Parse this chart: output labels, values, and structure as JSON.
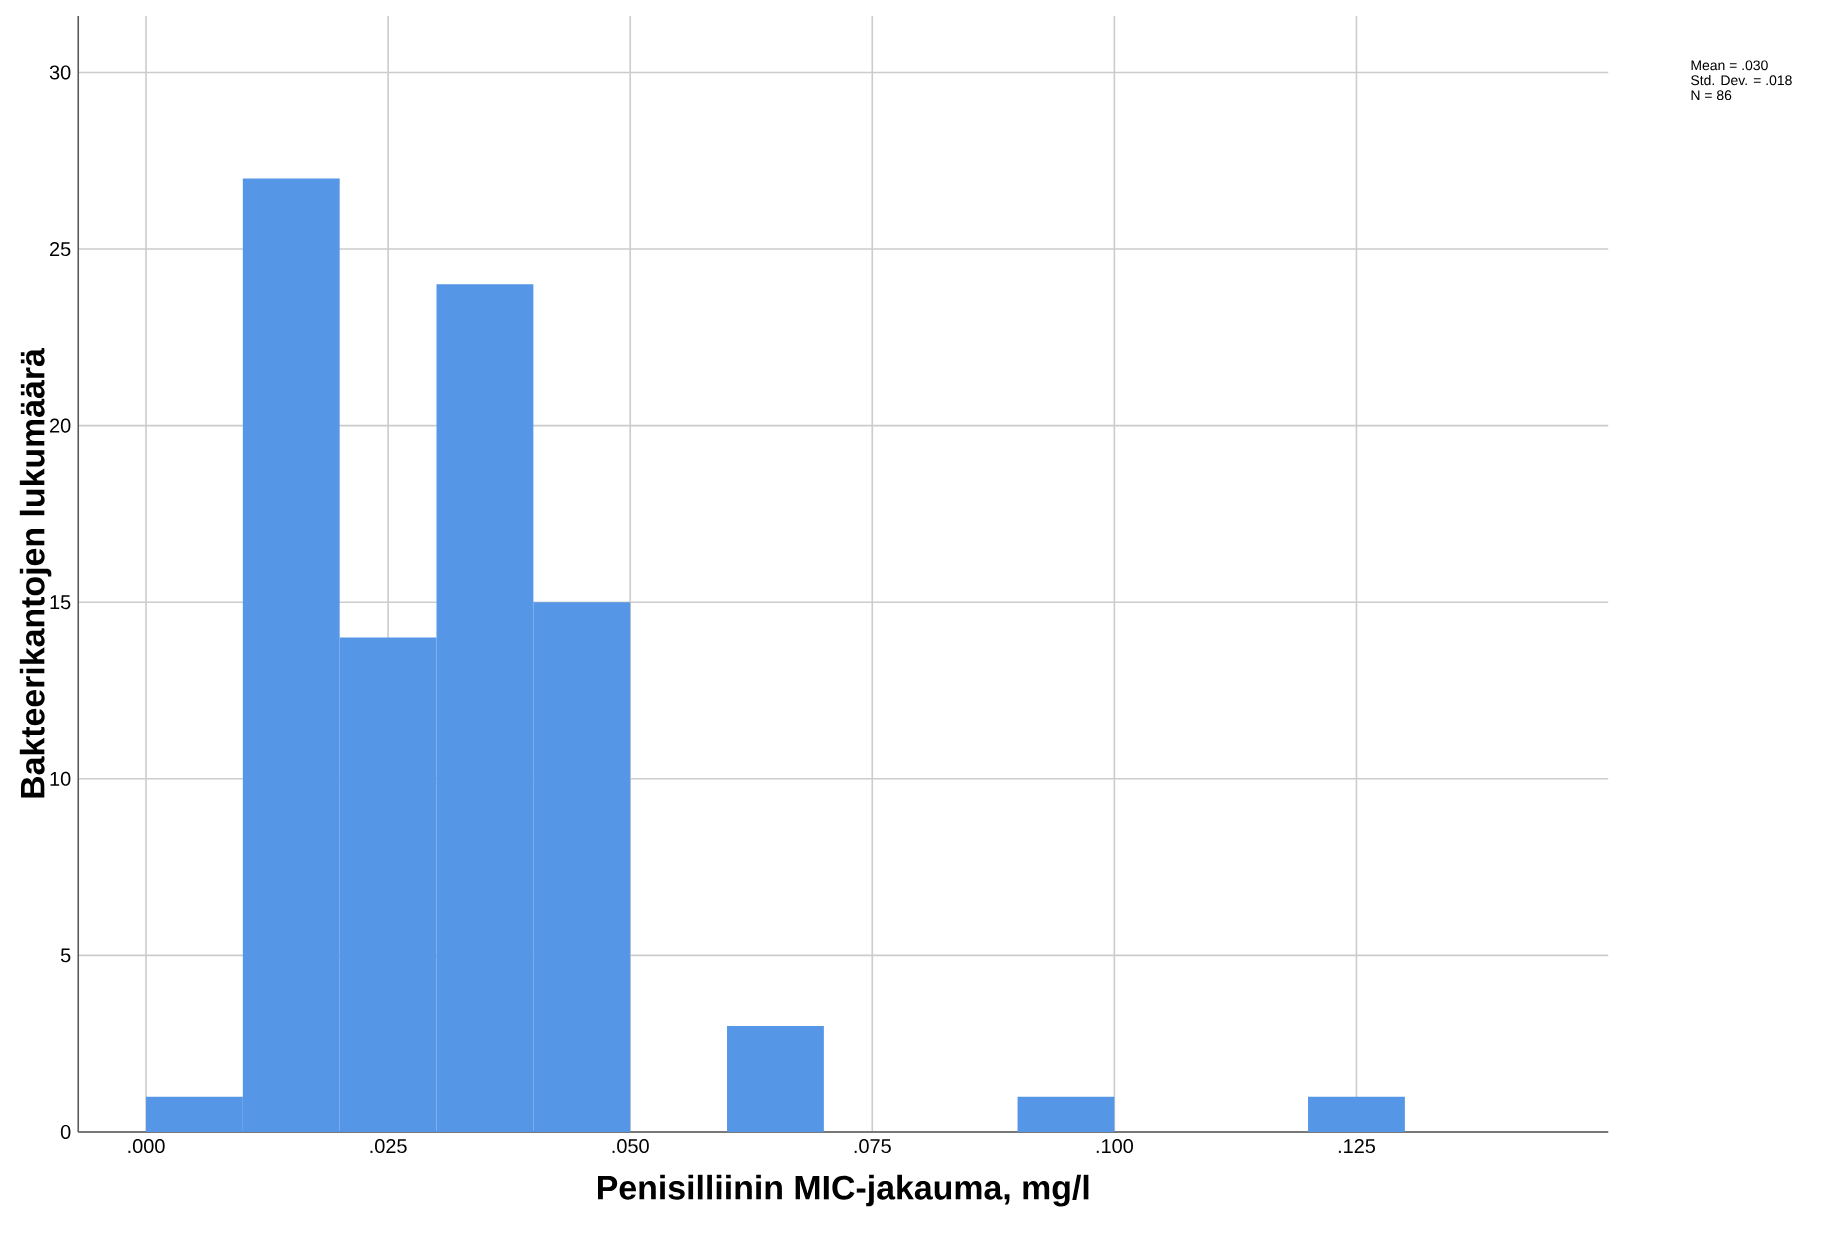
{
  "chart_data": {
    "type": "histogram",
    "xlabel": "Penisilliinin MIC-jakauma, mg/l",
    "ylabel": "Bakteerikantojen lukumäärä",
    "bins": [
      0,
      0.01,
      0.02,
      0.03,
      0.04,
      0.05,
      0.06,
      0.07,
      0.08,
      0.09,
      0.1,
      0.11,
      0.12,
      0.13
    ],
    "values": [
      1,
      27,
      14,
      24,
      15,
      0,
      3,
      0,
      0,
      1,
      0,
      0,
      1
    ],
    "color": "#5596e6",
    "xlim": [
      -0.007,
      0.151
    ],
    "ylim": [
      0,
      31.6
    ],
    "xticks": [
      {
        "value": 0,
        "label": ".000"
      },
      {
        "value": 0.025,
        "label": ".025"
      },
      {
        "value": 0.05,
        "label": ".050"
      },
      {
        "value": 0.075,
        "label": ".075"
      },
      {
        "value": 0.1,
        "label": ".100"
      },
      {
        "value": 0.125,
        "label": ".125"
      }
    ],
    "yticks": [
      0,
      5,
      10,
      15,
      20,
      25,
      30
    ],
    "grid": true,
    "annotations": [
      "Mean = .030",
      "Std. Dev. = .018",
      "N = 86"
    ]
  }
}
